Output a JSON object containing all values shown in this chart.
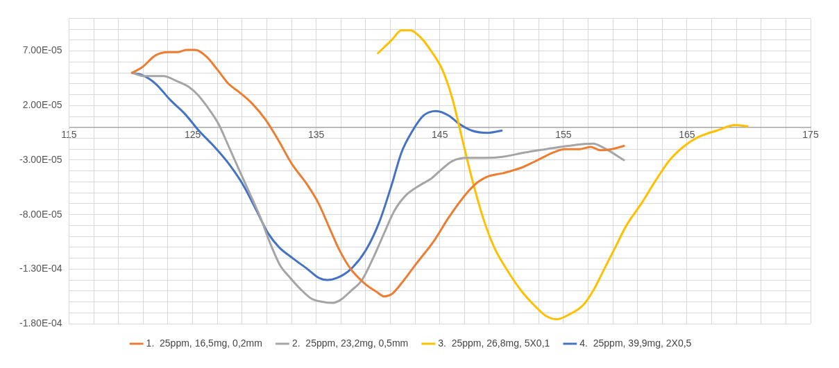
{
  "chart_data": {
    "type": "line",
    "xlim": [
      115,
      175
    ],
    "ylim": [
      -0.00018,
      0.0001
    ],
    "xticks": [
      115,
      {
        "value": 117,
        "label": null
      },
      {
        "value": 119,
        "label": null
      },
      {
        "value": 121,
        "label": null
      },
      {
        "value": 123,
        "label": null
      },
      125,
      {
        "value": 127,
        "label": null
      },
      {
        "value": 129,
        "label": null
      },
      {
        "value": 131,
        "label": null
      },
      {
        "value": 133,
        "label": null
      },
      135,
      {
        "value": 137,
        "label": null
      },
      {
        "value": 139,
        "label": null
      },
      {
        "value": 141,
        "label": null
      },
      {
        "value": 143,
        "label": null
      },
      145,
      {
        "value": 147,
        "label": null
      },
      {
        "value": 149,
        "label": null
      },
      {
        "value": 151,
        "label": null
      },
      {
        "value": 153,
        "label": null
      },
      155,
      {
        "value": 157,
        "label": null
      },
      {
        "value": 159,
        "label": null
      },
      {
        "value": 161,
        "label": null
      },
      {
        "value": 163,
        "label": null
      },
      165,
      {
        "value": 167,
        "label": null
      },
      {
        "value": 169,
        "label": null
      },
      {
        "value": 171,
        "label": null
      },
      {
        "value": 173,
        "label": null
      },
      175
    ],
    "yticks": [
      {
        "value": -0.00018,
        "label": "-1.80E-04"
      },
      {
        "value": -0.00017,
        "label": null
      },
      {
        "value": -0.00016,
        "label": null
      },
      {
        "value": -0.00015,
        "label": null
      },
      {
        "value": -0.00014,
        "label": null
      },
      {
        "value": -0.00013,
        "label": "-1.30E-04"
      },
      {
        "value": -0.00012,
        "label": null
      },
      {
        "value": -0.00011,
        "label": null
      },
      {
        "value": -0.0001,
        "label": null
      },
      {
        "value": -9e-05,
        "label": null
      },
      {
        "value": -8e-05,
        "label": "-8.00E-05"
      },
      {
        "value": -7e-05,
        "label": null
      },
      {
        "value": -6e-05,
        "label": null
      },
      {
        "value": -5e-05,
        "label": null
      },
      {
        "value": -4e-05,
        "label": null
      },
      {
        "value": -3e-05,
        "label": "-3.00E-05"
      },
      {
        "value": -2e-05,
        "label": null
      },
      {
        "value": -1e-05,
        "label": null
      },
      {
        "value": 0,
        "label": null
      },
      {
        "value": 1e-05,
        "label": null
      },
      {
        "value": 2e-05,
        "label": "2.00E-05"
      },
      {
        "value": 3e-05,
        "label": null
      },
      {
        "value": 4e-05,
        "label": null
      },
      {
        "value": 5e-05,
        "label": null
      },
      {
        "value": 6e-05,
        "label": null
      },
      {
        "value": 7e-05,
        "label": "7.00E-05"
      },
      {
        "value": 8e-05,
        "label": null
      },
      {
        "value": 9e-05,
        "label": null
      },
      {
        "value": 0.0001,
        "label": null
      }
    ],
    "grid": true,
    "legend": "bottom",
    "marker": "none",
    "series": [
      {
        "name": "1.  25ppm, 16,5mg, 0,2mm",
        "color": "#ed7d31",
        "x": [
          120.1,
          120.9,
          122.0,
          123.0,
          123.8,
          124.5,
          125.2,
          126.1,
          127.0,
          127.9,
          128.8,
          129.8,
          130.9,
          132.0,
          133.0,
          134.3,
          135.2,
          136.1,
          136.9,
          137.8,
          138.9,
          139.9,
          140.5,
          141.1,
          141.9,
          143.1,
          144.6,
          145.7,
          147.2,
          148.1,
          148.9,
          150.1,
          151.6,
          153.1,
          154.2,
          155.1,
          156.3,
          157.2,
          158.0,
          158.9,
          159.9
        ],
        "values": [
          5e-05,
          5.5e-05,
          6.6e-05,
          6.9e-05,
          6.9e-05,
          7.1e-05,
          7.1e-05,
          6.5e-05,
          5.3e-05,
          4e-05,
          3.2e-05,
          2.2e-05,
          7e-06,
          -1.3e-05,
          -3.3e-05,
          -5.3e-05,
          -7e-05,
          -9.3e-05,
          -0.000113,
          -0.00013,
          -0.000143,
          -0.000151,
          -0.000155,
          -0.000153,
          -0.000143,
          -0.000125,
          -0.000103,
          -8.3e-05,
          -6e-05,
          -5e-05,
          -4.5e-05,
          -4.2e-05,
          -3.7e-05,
          -2.9e-05,
          -2.3e-05,
          -2e-05,
          -2e-05,
          -1.8e-05,
          -2.1e-05,
          -2e-05,
          -1.7e-05
        ]
      },
      {
        "name": "2.  25ppm, 23,2mg, 0,5mm",
        "color": "#a5a5a5",
        "x": [
          120.1,
          121.1,
          122.6,
          123.8,
          124.7,
          125.4,
          126.3,
          127.1,
          127.9,
          128.8,
          129.6,
          130.5,
          131.3,
          132.1,
          132.9,
          133.7,
          134.6,
          135.5,
          136.3,
          137.0,
          137.8,
          138.7,
          139.6,
          140.5,
          141.3,
          142.2,
          143.4,
          144.3,
          145.2,
          146.0,
          147.2,
          148.7,
          150.1,
          151.9,
          153.6,
          155.4,
          157.4,
          158.3,
          159.9
        ],
        "values": [
          5e-05,
          4.7e-05,
          4.7e-05,
          4.2e-05,
          3.7e-05,
          3e-05,
          1.7e-05,
          3e-06,
          -1.7e-05,
          -4e-05,
          -6e-05,
          -8.3e-05,
          -0.000107,
          -0.000127,
          -0.000138,
          -0.000148,
          -0.000157,
          -0.00016,
          -0.000161,
          -0.000158,
          -0.00015,
          -0.00014,
          -0.00012,
          -9.7e-05,
          -7.7e-05,
          -6.3e-05,
          -5.3e-05,
          -4.7e-05,
          -3.8e-05,
          -3.1e-05,
          -2.8e-05,
          -2.8e-05,
          -2.7e-05,
          -2.3e-05,
          -2e-05,
          -1.7e-05,
          -1.5e-05,
          -1.9e-05,
          -3e-05
        ]
      },
      {
        "name": "3.  25ppm, 26,8mg, 5X0,1",
        "color": "#ffc000",
        "x": [
          140.0,
          141.1,
          141.9,
          142.6,
          143.4,
          144.3,
          145.2,
          146.0,
          146.8,
          147.6,
          148.5,
          149.4,
          150.4,
          151.6,
          152.8,
          153.6,
          154.5,
          155.4,
          156.6,
          157.4,
          158.3,
          159.2,
          160.1,
          161.3,
          162.4,
          163.6,
          164.8,
          165.9,
          167.4,
          168.9,
          169.9
        ],
        "values": [
          6.8e-05,
          8e-05,
          8.9e-05,
          8.9e-05,
          8.3e-05,
          7e-05,
          5.3e-05,
          2.7e-05,
          -1e-05,
          -4.7e-05,
          -8.3e-05,
          -0.00011,
          -0.00013,
          -0.00015,
          -0.000165,
          -0.000173,
          -0.000176,
          -0.000172,
          -0.000163,
          -0.00015,
          -0.00013,
          -0.00011,
          -9e-05,
          -7e-05,
          -5e-05,
          -3e-05,
          -1.7e-05,
          -9e-06,
          -3e-06,
          2e-06,
          1e-06
        ]
      },
      {
        "name": "4.  25ppm, 39,9mg, 2X0,5",
        "color": "#4472c4",
        "x": [
          120.1,
          120.9,
          122.0,
          123.2,
          124.4,
          125.5,
          126.7,
          127.9,
          129.1,
          130.2,
          131.1,
          132.0,
          133.1,
          134.3,
          135.2,
          135.9,
          136.7,
          137.8,
          139.0,
          140.1,
          141.1,
          141.9,
          142.8,
          143.7,
          144.7,
          145.7,
          146.6,
          147.6,
          148.9,
          150.0
        ],
        "values": [
          5e-05,
          4.8e-05,
          4e-05,
          2.5e-05,
          1.2e-05,
          -3e-06,
          -1.7e-05,
          -3.3e-05,
          -5.3e-05,
          -7.7e-05,
          -9.7e-05,
          -0.00011,
          -0.00012,
          -0.00013,
          -0.000138,
          -0.00014,
          -0.000138,
          -0.00013,
          -0.000113,
          -8.7e-05,
          -5.3e-05,
          -2.3e-05,
          -3e-06,
          1.1e-05,
          1.5e-05,
          1.1e-05,
          3e-06,
          -3e-06,
          -5e-06,
          -3e-06
        ]
      }
    ]
  }
}
